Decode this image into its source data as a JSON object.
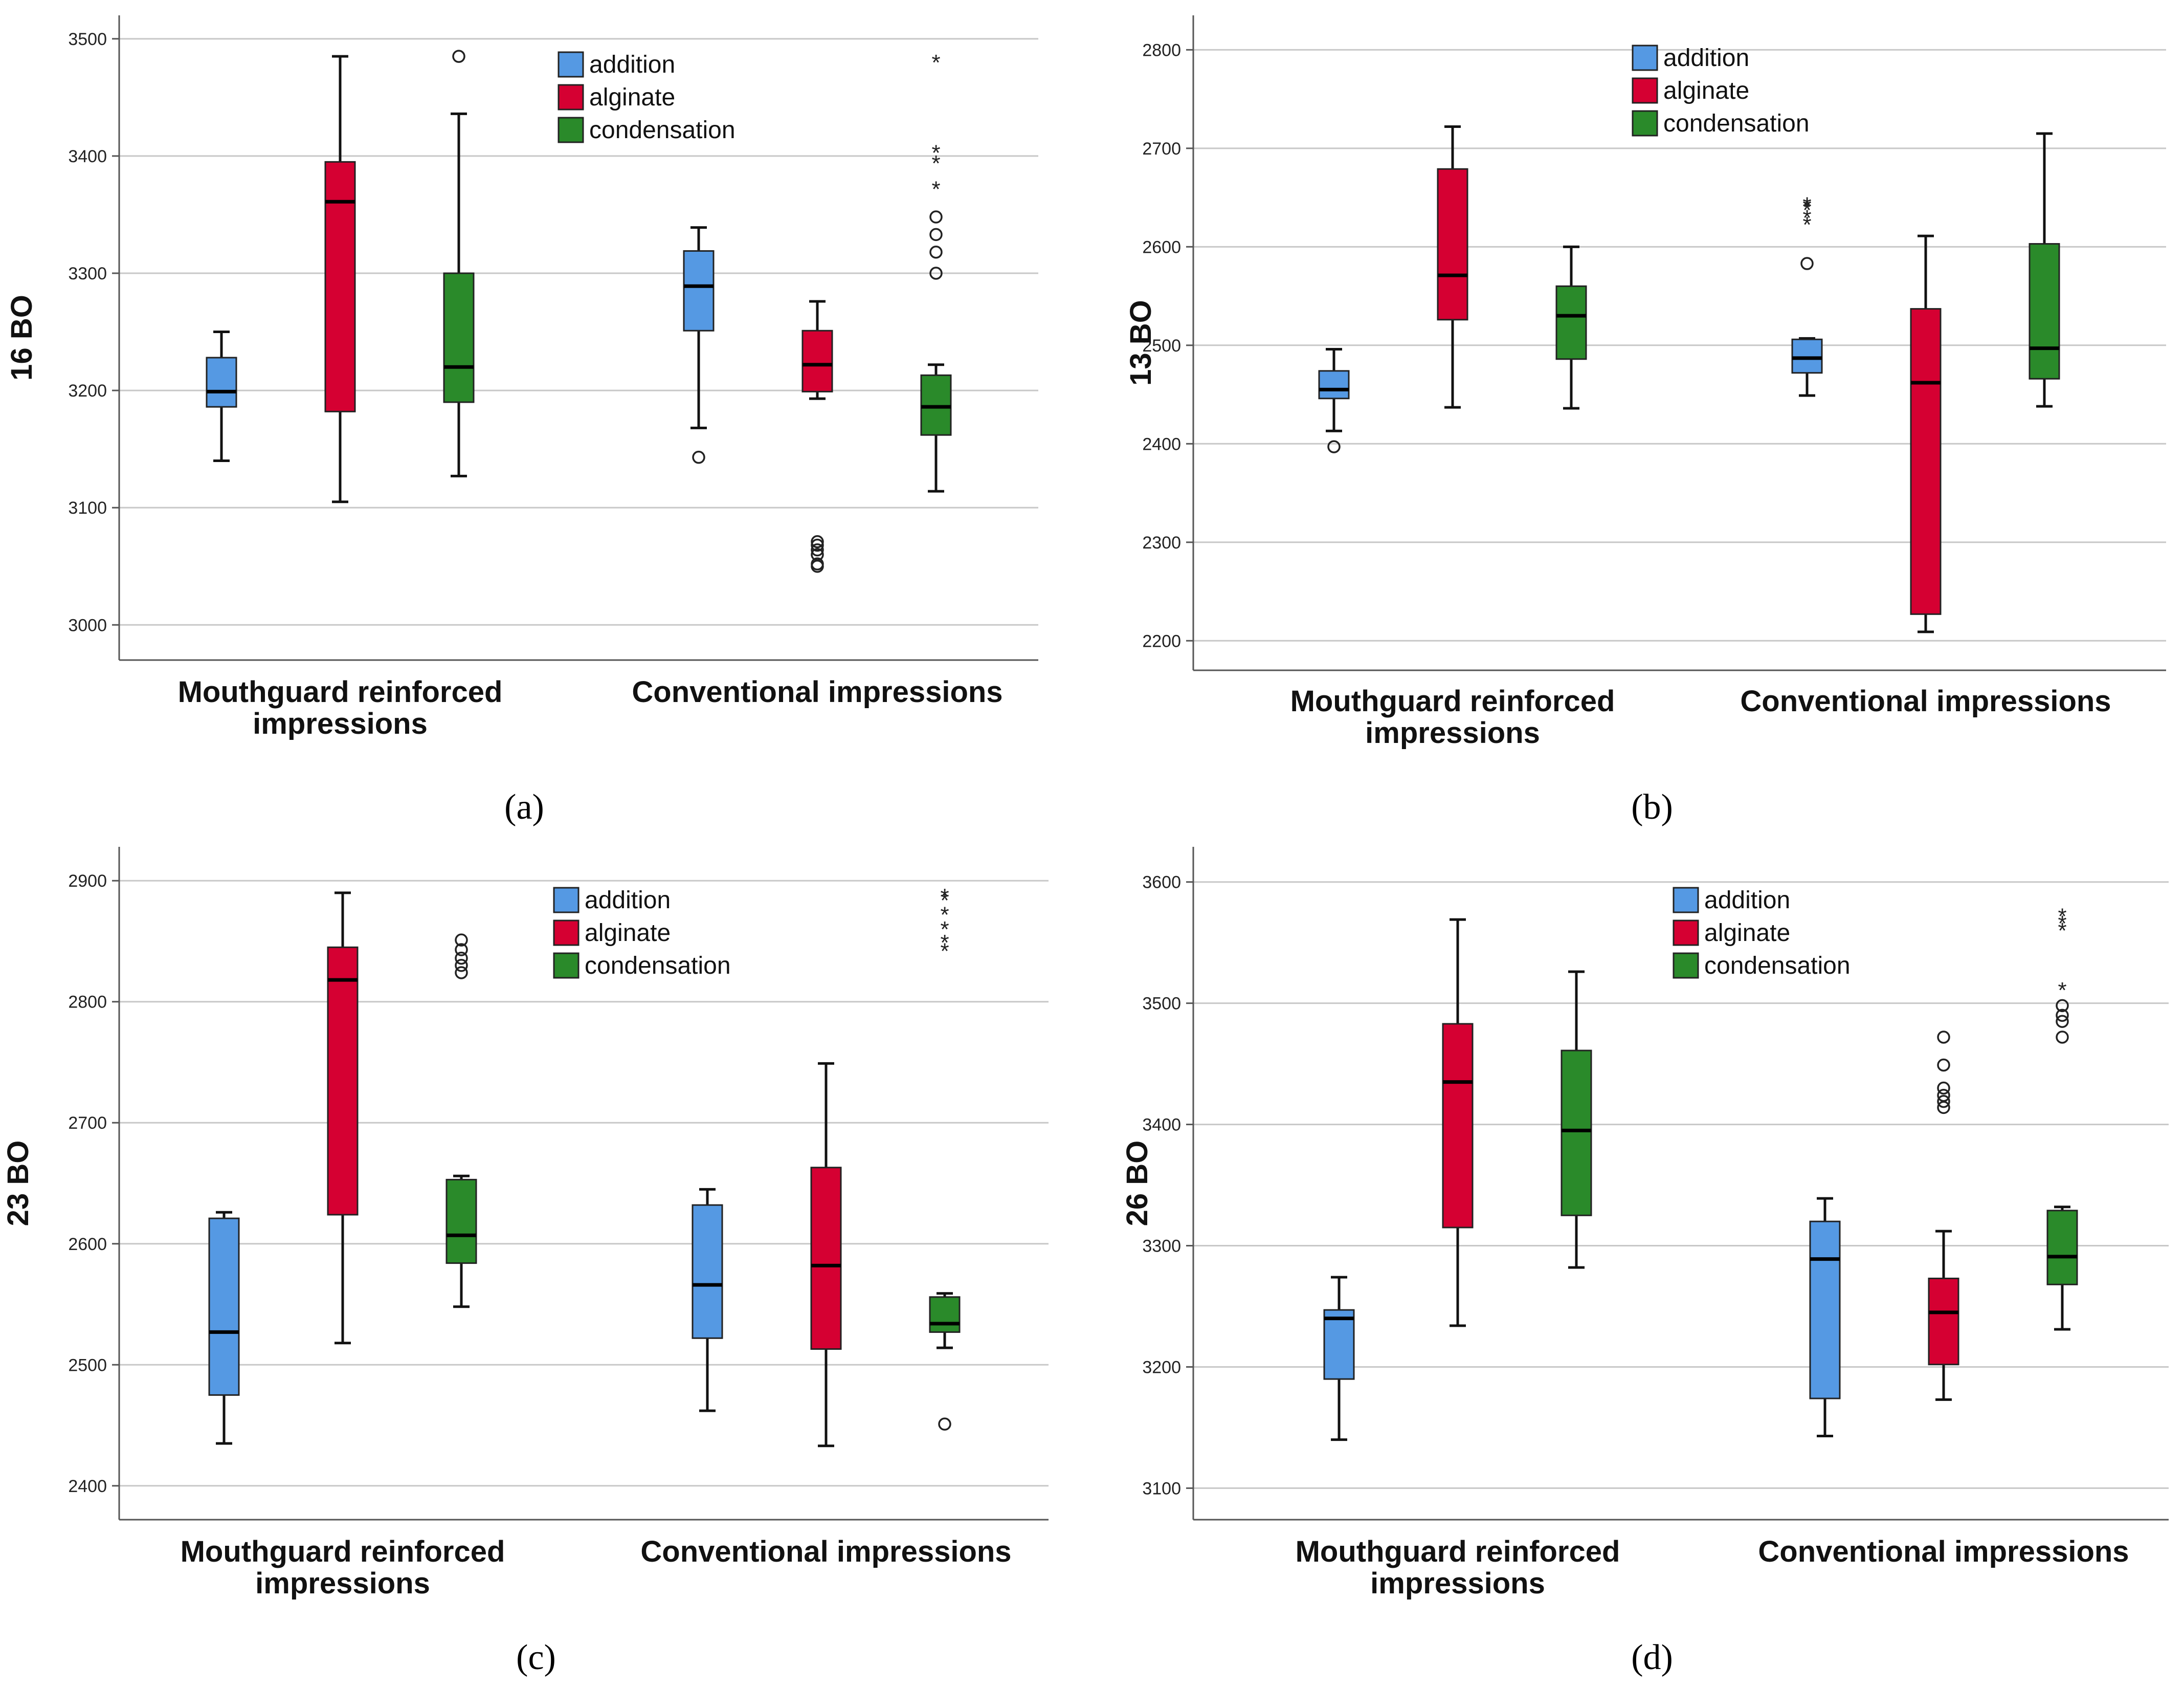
{
  "figure": {
    "panels": [
      "a",
      "b",
      "c",
      "d"
    ]
  },
  "colors": {
    "addition": "#5599e3",
    "alginate": "#d50032",
    "condensation": "#2a8a2a",
    "grid": "#c8c8c8",
    "axis": "#555555"
  },
  "chart_data": [
    {
      "type": "boxplot",
      "panel_label": "(a)",
      "ylabel": "16 BO",
      "ylim": [
        2970,
        3520
      ],
      "yticks": [
        3000,
        3100,
        3200,
        3300,
        3400,
        3500
      ],
      "ytick_labels": [
        "3000",
        "3100",
        "3200",
        "3300",
        "3400",
        "3500"
      ],
      "categories": [
        "Mouthguard reinforced\nimpressions",
        "Conventional impressions"
      ],
      "legend": [
        "addition",
        "alginate",
        "condensation"
      ],
      "boxes": [
        {
          "category": 0,
          "series": "addition",
          "min": 3140,
          "q1": 3186,
          "median": 3199,
          "q3": 3228,
          "max": 3250,
          "outliers": [],
          "extremes": []
        },
        {
          "category": 0,
          "series": "alginate",
          "min": 3105,
          "q1": 3182,
          "median": 3361,
          "q3": 3395,
          "max": 3485,
          "outliers": [],
          "extremes": []
        },
        {
          "category": 0,
          "series": "condensation",
          "min": 3127,
          "q1": 3190,
          "median": 3220,
          "q3": 3300,
          "max": 3436,
          "outliers": [
            3485
          ],
          "extremes": []
        },
        {
          "category": 1,
          "series": "addition",
          "min": 3168,
          "q1": 3251,
          "median": 3289,
          "q3": 3319,
          "max": 3339,
          "outliers": [
            3143
          ],
          "extremes": []
        },
        {
          "category": 1,
          "series": "alginate",
          "min": 3193,
          "q1": 3199,
          "median": 3222,
          "q3": 3251,
          "max": 3276,
          "outliers": [
            3050,
            3052,
            3060,
            3064,
            3068,
            3071
          ],
          "extremes": []
        },
        {
          "category": 1,
          "series": "condensation",
          "min": 3114,
          "q1": 3162,
          "median": 3186,
          "q3": 3213,
          "max": 3222,
          "outliers": [
            3300,
            3318,
            3333,
            3348
          ],
          "extremes": [
            3374,
            3396,
            3405,
            3482
          ]
        }
      ]
    },
    {
      "type": "boxplot",
      "panel_label": "(b)",
      "ylabel": "13 BO",
      "ylim": [
        2170,
        2835
      ],
      "yticks": [
        2200,
        2300,
        2400,
        2500,
        2600,
        2700,
        2800
      ],
      "ytick_labels": [
        "2200",
        "2300",
        "2400",
        "2500",
        "2600",
        "2700",
        "2800"
      ],
      "categories": [
        "Mouthguard reinforced\nimpressions",
        "Conventional impressions"
      ],
      "legend": [
        "addition",
        "alginate",
        "condensation"
      ],
      "boxes": [
        {
          "category": 0,
          "series": "addition",
          "min": 2413,
          "q1": 2446,
          "median": 2455,
          "q3": 2474,
          "max": 2496,
          "outliers": [
            2397
          ],
          "extremes": []
        },
        {
          "category": 0,
          "series": "alginate",
          "min": 2437,
          "q1": 2526,
          "median": 2571,
          "q3": 2679,
          "max": 2722,
          "outliers": [],
          "extremes": []
        },
        {
          "category": 0,
          "series": "condensation",
          "min": 2436,
          "q1": 2486,
          "median": 2530,
          "q3": 2560,
          "max": 2600,
          "outliers": [],
          "extremes": []
        },
        {
          "category": 1,
          "series": "addition",
          "min": 2449,
          "q1": 2472,
          "median": 2487,
          "q3": 2506,
          "max": 2507,
          "outliers": [
            2583
          ],
          "extremes": [
            2625,
            2632,
            2640,
            2643,
            2645
          ]
        },
        {
          "category": 1,
          "series": "alginate",
          "min": 2209,
          "q1": 2227,
          "median": 2462,
          "q3": 2537,
          "max": 2611,
          "outliers": [],
          "extremes": []
        },
        {
          "category": 1,
          "series": "condensation",
          "min": 2438,
          "q1": 2466,
          "median": 2497,
          "q3": 2603,
          "max": 2715,
          "outliers": [],
          "extremes": []
        }
      ]
    },
    {
      "type": "boxplot",
      "panel_label": "(c)",
      "ylabel": "23 BO",
      "ylim": [
        2372,
        2928
      ],
      "yticks": [
        2400,
        2500,
        2600,
        2700,
        2800,
        2900
      ],
      "ytick_labels": [
        "2400",
        "2500",
        "2600",
        "2700",
        "2800",
        "2900"
      ],
      "categories": [
        "Mouthguard reinforced\nimpressions",
        "Conventional impressions"
      ],
      "legend": [
        "addition",
        "alginate",
        "condensation"
      ],
      "boxes": [
        {
          "category": 0,
          "series": "addition",
          "min": 2435,
          "q1": 2475,
          "median": 2527,
          "q3": 2621,
          "max": 2626,
          "outliers": [],
          "extremes": []
        },
        {
          "category": 0,
          "series": "alginate",
          "min": 2518,
          "q1": 2624,
          "median": 2818,
          "q3": 2845,
          "max": 2890,
          "outliers": [],
          "extremes": []
        },
        {
          "category": 0,
          "series": "condensation",
          "min": 2548,
          "q1": 2584,
          "median": 2607,
          "q3": 2653,
          "max": 2656,
          "outliers": [
            2824,
            2830,
            2836,
            2843,
            2851
          ],
          "extremes": []
        },
        {
          "category": 1,
          "series": "addition",
          "min": 2462,
          "q1": 2522,
          "median": 2566,
          "q3": 2632,
          "max": 2645,
          "outliers": [],
          "extremes": []
        },
        {
          "category": 1,
          "series": "alginate",
          "min": 2433,
          "q1": 2513,
          "median": 2582,
          "q3": 2663,
          "max": 2749,
          "outliers": [],
          "extremes": []
        },
        {
          "category": 1,
          "series": "condensation",
          "min": 2514,
          "q1": 2527,
          "median": 2534,
          "q3": 2556,
          "max": 2559,
          "outliers": [
            2451
          ],
          "extremes": [
            2844,
            2851,
            2862,
            2874,
            2886,
            2889
          ]
        }
      ]
    },
    {
      "type": "boxplot",
      "panel_label": "(d)",
      "ylabel": "26 BO",
      "ylim": [
        3074,
        3629
      ],
      "yticks": [
        3100,
        3200,
        3300,
        3400,
        3500,
        3600
      ],
      "ytick_labels": [
        "3100",
        "3200",
        "3300",
        "3400",
        "3500",
        "3600"
      ],
      "categories": [
        "Mouthguard reinforced\nimpressions",
        "Conventional impressions"
      ],
      "legend": [
        "addition",
        "alginate",
        "condensation"
      ],
      "boxes": [
        {
          "category": 0,
          "series": "addition",
          "min": 3140,
          "q1": 3190,
          "median": 3240,
          "q3": 3247,
          "max": 3274,
          "outliers": [],
          "extremes": []
        },
        {
          "category": 0,
          "series": "alginate",
          "min": 3234,
          "q1": 3315,
          "median": 3435,
          "q3": 3483,
          "max": 3569,
          "outliers": [],
          "extremes": []
        },
        {
          "category": 0,
          "series": "condensation",
          "min": 3282,
          "q1": 3325,
          "median": 3395,
          "q3": 3461,
          "max": 3526,
          "outliers": [],
          "extremes": []
        },
        {
          "category": 1,
          "series": "addition",
          "min": 3143,
          "q1": 3174,
          "median": 3289,
          "q3": 3320,
          "max": 3339,
          "outliers": [],
          "extremes": []
        },
        {
          "category": 1,
          "series": "alginate",
          "min": 3173,
          "q1": 3202,
          "median": 3245,
          "q3": 3273,
          "max": 3312,
          "outliers": [
            3414,
            3419,
            3424,
            3430,
            3449,
            3472
          ],
          "extremes": []
        },
        {
          "category": 1,
          "series": "condensation",
          "min": 3231,
          "q1": 3268,
          "median": 3291,
          "q3": 3329,
          "max": 3332,
          "outliers": [
            3472,
            3485,
            3490,
            3498
          ],
          "extremes": [
            3513,
            3562,
            3568,
            3574
          ]
        }
      ]
    }
  ]
}
